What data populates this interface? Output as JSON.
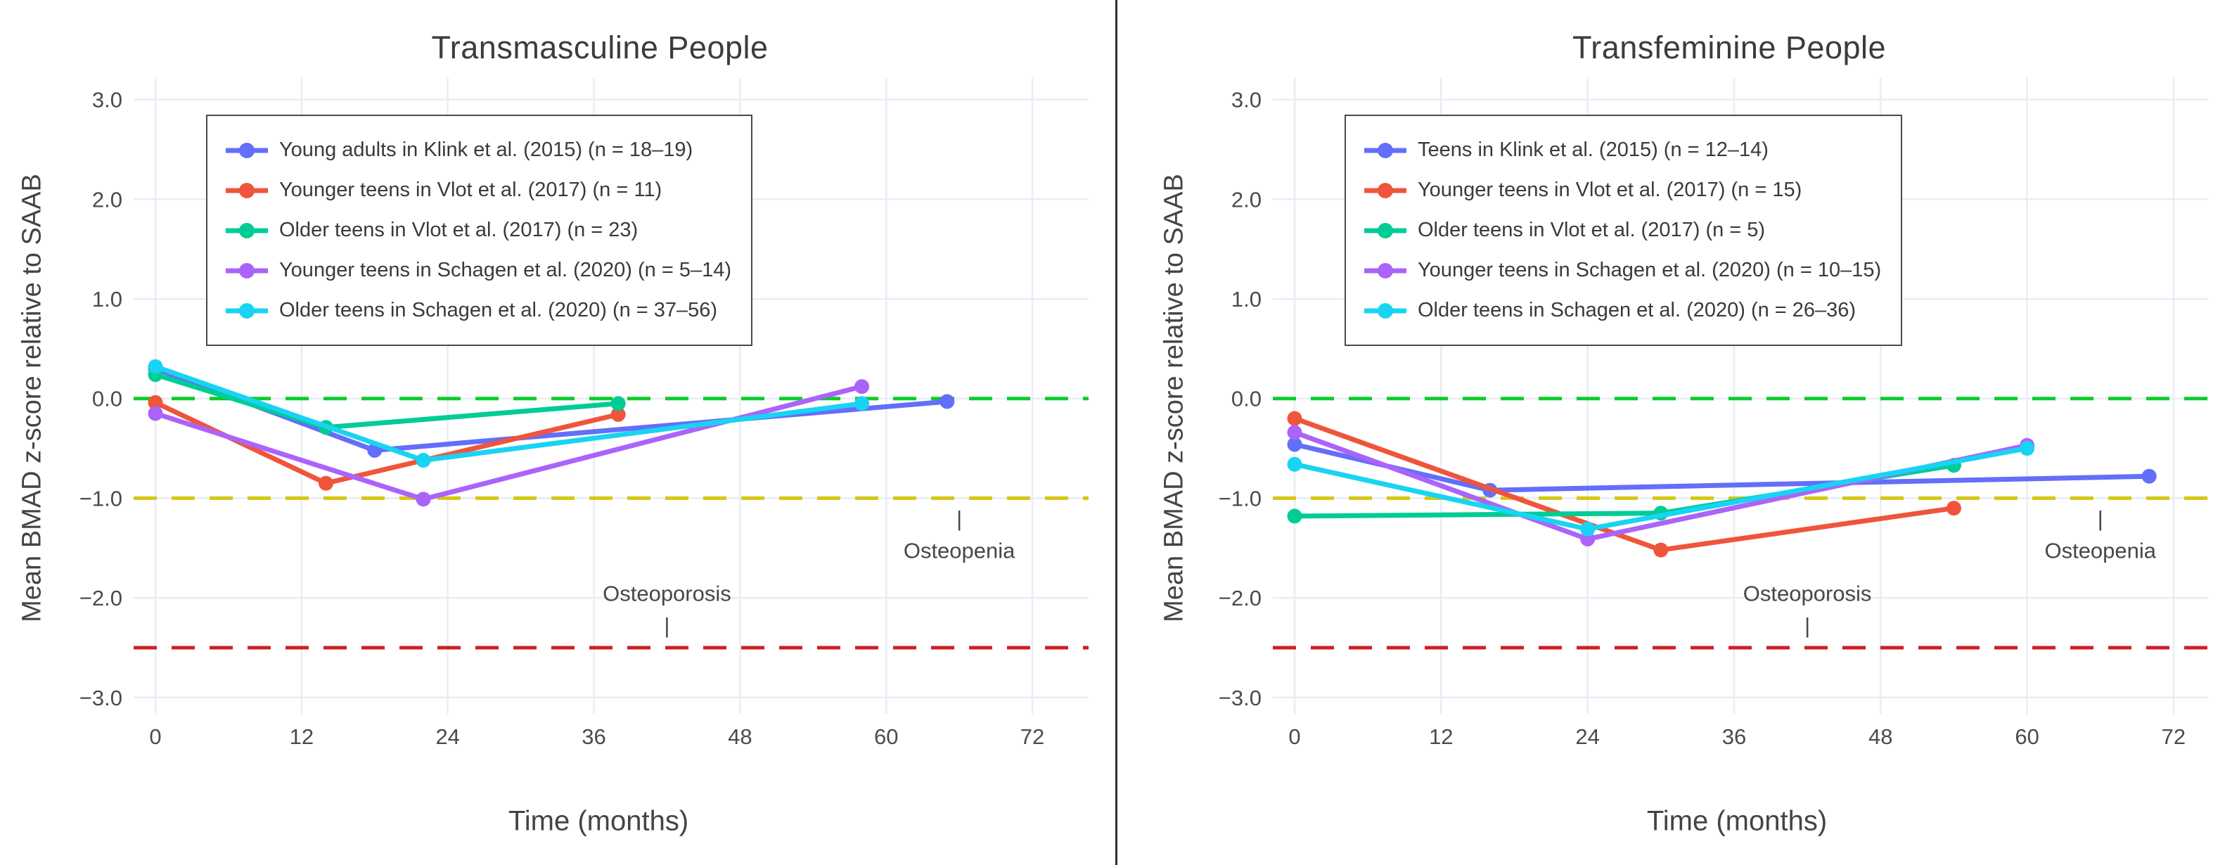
{
  "figure": {
    "background": "#ffffff",
    "divider_color": "#2f2f2f",
    "grid_color": "#e8edf5",
    "tick_color": "#4b4b4b",
    "title_color": "#3c3c3c",
    "annotation_color": "#474747",
    "legend_border_color": "#4a4a4a",
    "legend_text_color": "#3a3a3a"
  },
  "axes": {
    "x_ticks": [
      0,
      12,
      24,
      36,
      48,
      60,
      72
    ],
    "y_ticks": [
      {
        "label": "3.0",
        "value": 3
      },
      {
        "label": "2.0",
        "value": 2
      },
      {
        "label": "1.0",
        "value": 1
      },
      {
        "label": "0.0",
        "value": 0
      },
      {
        "label": "−1.0",
        "value": -1
      },
      {
        "label": "−2.0",
        "value": -2
      },
      {
        "label": "−3.0",
        "value": -3
      }
    ]
  },
  "reference_lines": [
    {
      "name": "normal-reference-line",
      "z": 0,
      "color": "#0ecb2d"
    },
    {
      "name": "osteopenia-threshold-line",
      "z": -1,
      "color": "#d5c713"
    },
    {
      "name": "osteoporosis-threshold-line",
      "z": -2.5,
      "color": "#cd2026"
    }
  ],
  "annotations": [
    {
      "id": "osteopenia-tick",
      "text": "|",
      "x": 66,
      "z": -1.21
    },
    {
      "id": "osteopenia-label",
      "text": "Osteopenia",
      "x": 66,
      "z": -1.53
    },
    {
      "id": "osteoporosis-label",
      "text": "Osteoporosis",
      "x": 42,
      "z": -1.96
    },
    {
      "id": "osteoporosis-tick",
      "text": "|",
      "x": 42,
      "z": -2.28
    }
  ],
  "chart_data": [
    {
      "type": "line",
      "title": "Transmasculine People",
      "xlabel": "Time (months)",
      "ylabel": "Mean BMAD z-score relative to SAAB",
      "xlim": [
        -2,
        76
      ],
      "ylim": [
        -3.2,
        3.2
      ],
      "grid": true,
      "legend_position": "upper left",
      "series": [
        {
          "name": "Young adults in Klink et al. (2015) (n = 18–19)",
          "color": "#636EFA",
          "x": [
            0,
            18,
            65
          ],
          "y": [
            0.3,
            -0.52,
            -0.03
          ]
        },
        {
          "name": "Younger teens in Vlot et al. (2017) (n = 11)",
          "color": "#EF553B",
          "x": [
            0,
            14,
            38
          ],
          "y": [
            -0.04,
            -0.85,
            -0.16
          ]
        },
        {
          "name": "Older teens in Vlot et al. (2017) (n = 23)",
          "color": "#00CC96",
          "x": [
            0,
            14,
            38
          ],
          "y": [
            0.24,
            -0.29,
            -0.05
          ]
        },
        {
          "name": "Younger teens in Schagen et al. (2020) (n = 5–14)",
          "color": "#AB63FA",
          "x": [
            0,
            22,
            58
          ],
          "y": [
            -0.15,
            -1.01,
            0.12
          ]
        },
        {
          "name": "Older teens in Schagen et al. (2020) (n = 37–56)",
          "color": "#19D3F3",
          "x": [
            0,
            22,
            58
          ],
          "y": [
            0.32,
            -0.62,
            -0.05
          ]
        }
      ]
    },
    {
      "type": "line",
      "title": "Transfeminine People",
      "xlabel": "Time (months)",
      "ylabel": "Mean BMAD z-score relative to SAAB",
      "xlim": [
        -2,
        76
      ],
      "ylim": [
        -3.2,
        3.2
      ],
      "grid": true,
      "legend_position": "upper left",
      "series": [
        {
          "name": "Teens in Klink et al. (2015) (n = 12–14)",
          "color": "#636EFA",
          "x": [
            0,
            16,
            70
          ],
          "y": [
            -0.46,
            -0.92,
            -0.78
          ]
        },
        {
          "name": "Younger teens in Vlot et al. (2017) (n = 15)",
          "color": "#EF553B",
          "x": [
            0,
            30,
            54
          ],
          "y": [
            -0.2,
            -1.52,
            -1.1
          ]
        },
        {
          "name": "Older teens in Vlot et al. (2017) (n = 5)",
          "color": "#00CC96",
          "x": [
            0,
            30,
            54
          ],
          "y": [
            -1.18,
            -1.15,
            -0.67
          ]
        },
        {
          "name": "Younger teens in Schagen et al. (2020) (n = 10–15)",
          "color": "#AB63FA",
          "x": [
            0,
            24,
            60
          ],
          "y": [
            -0.34,
            -1.41,
            -0.47
          ]
        },
        {
          "name": "Older teens in Schagen et al. (2020) (n = 26–36)",
          "color": "#19D3F3",
          "x": [
            0,
            24,
            60
          ],
          "y": [
            -0.66,
            -1.31,
            -0.5
          ]
        }
      ]
    }
  ]
}
